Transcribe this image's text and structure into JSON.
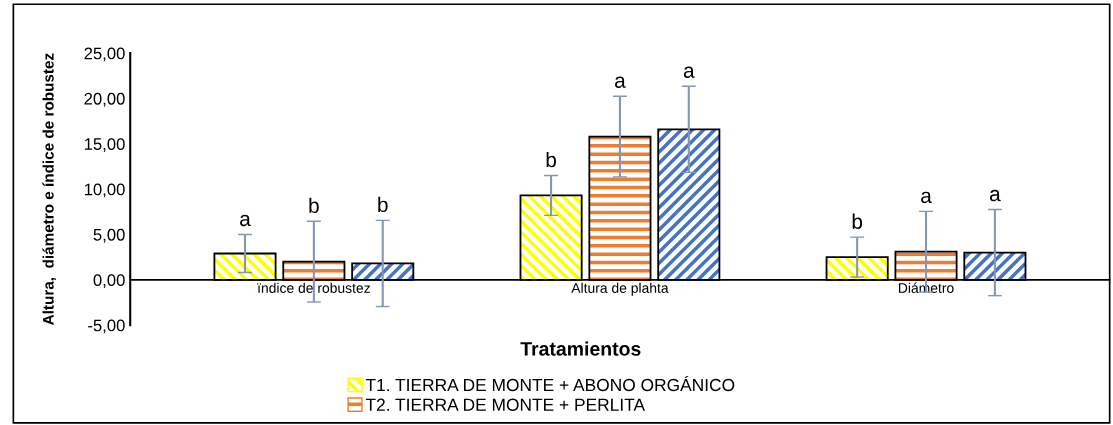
{
  "chart_data": {
    "type": "bar",
    "categories": [
      "ïndice de robustez",
      "Altura de plahta",
      "Diámetro"
    ],
    "xlabel": "Tratamientos",
    "ylabel": "Altura,  diámetro e índice de robustez",
    "series": [
      {
        "name": "T1. TIERRA DE MONTE + ABONO ORGÁNICO",
        "color": "#ffff00",
        "values": [
          2.9,
          9.3,
          2.5
        ],
        "errors": [
          2.1,
          2.2,
          2.2
        ],
        "value_labels": [
          "a",
          "b",
          "b"
        ]
      },
      {
        "name": "T2. TIERRA DE MONTE + PERLITA",
        "color": "#ed7d31",
        "values": [
          2.0,
          15.8,
          3.1
        ],
        "errors": [
          4.45,
          4.45,
          4.45
        ],
        "value_labels": [
          "b",
          "a",
          "a"
        ]
      },
      {
        "color": "#4472c4",
        "values": [
          1.8,
          16.6,
          3.0
        ],
        "errors": [
          4.75,
          4.75,
          4.75
        ],
        "value_labels": [
          "b",
          "a",
          "a"
        ]
      }
    ],
    "ylim": [
      -5,
      25
    ],
    "yticks": [
      {
        "value": -5,
        "label": "-5,00"
      },
      {
        "value": 0,
        "label": "0,00"
      },
      {
        "value": 5,
        "label": "5,00"
      },
      {
        "value": 10,
        "label": "10,00"
      },
      {
        "value": 15,
        "label": "15,00"
      },
      {
        "value": 20,
        "label": "20,00"
      },
      {
        "value": 25,
        "label": "25,00"
      }
    ],
    "legend": "bottom"
  }
}
